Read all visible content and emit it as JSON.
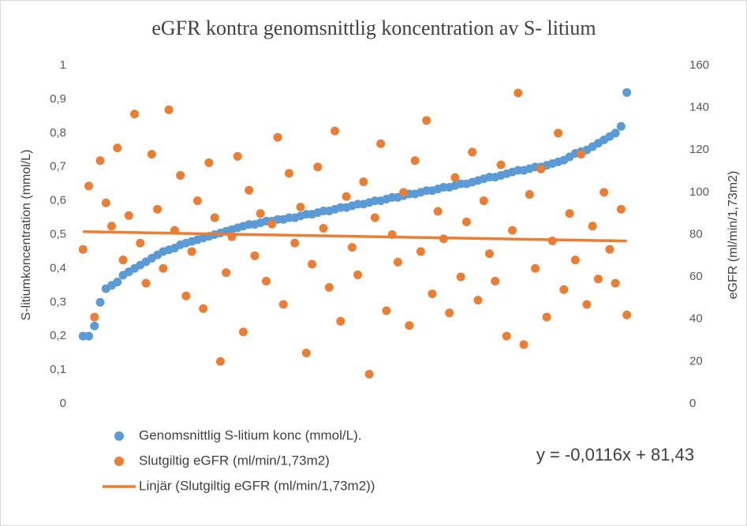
{
  "chart_data": {
    "type": "scatter",
    "title": "eGFR kontra genomsnittlig koncentration av S- litium",
    "y_label": "S-litiumkoncentration (mmol/L)",
    "y2_label": "eGFR (ml/min/1,73m2)",
    "xlim": [
      0,
      420
    ],
    "ylim": [
      0,
      1
    ],
    "yticks": [
      0,
      {
        "value": 0.1,
        "label": "0,1"
      },
      {
        "value": 0.2,
        "label": "0,2"
      },
      {
        "value": 0.3,
        "label": "0,3"
      },
      {
        "value": 0.4,
        "label": "0,4"
      },
      {
        "value": 0.5,
        "label": "0,5"
      },
      {
        "value": 0.6,
        "label": "0,6"
      },
      {
        "value": 0.7,
        "label": "0,7"
      },
      {
        "value": 0.8,
        "label": "0,8"
      },
      {
        "value": 0.9,
        "label": "0,9"
      },
      1
    ],
    "y2lim": [
      0,
      160
    ],
    "y2ticks": [
      0,
      20,
      40,
      60,
      80,
      100,
      120,
      140,
      160
    ],
    "x": [
      4,
      8,
      12,
      16,
      20,
      24,
      28,
      32,
      36,
      40,
      44,
      48,
      52,
      56,
      60,
      64,
      68,
      72,
      76,
      80,
      84,
      88,
      92,
      96,
      100,
      104,
      108,
      112,
      116,
      120,
      124,
      128,
      132,
      136,
      140,
      144,
      148,
      152,
      156,
      160,
      164,
      168,
      172,
      176,
      180,
      184,
      188,
      192,
      196,
      200,
      204,
      208,
      212,
      216,
      220,
      224,
      228,
      232,
      236,
      240,
      244,
      248,
      252,
      256,
      260,
      264,
      268,
      272,
      276,
      280,
      284,
      288,
      292,
      296,
      300,
      304,
      308,
      312,
      316,
      320,
      324,
      328,
      332,
      336,
      340,
      344,
      348,
      352,
      356,
      360,
      364,
      368,
      372,
      376,
      380,
      384
    ],
    "series": [
      {
        "name": "Genomsnittlig S-litium konc (mmol/L).",
        "color": "#5b9bd5",
        "values": [
          0.2,
          0.2,
          0.23,
          0.3,
          0.34,
          0.35,
          0.36,
          0.38,
          0.39,
          0.4,
          0.41,
          0.42,
          0.43,
          0.44,
          0.45,
          0.455,
          0.46,
          0.47,
          0.475,
          0.48,
          0.485,
          0.49,
          0.495,
          0.5,
          0.505,
          0.51,
          0.515,
          0.52,
          0.525,
          0.53,
          0.53,
          0.535,
          0.54,
          0.54,
          0.545,
          0.545,
          0.55,
          0.55,
          0.555,
          0.56,
          0.56,
          0.565,
          0.57,
          0.57,
          0.575,
          0.58,
          0.58,
          0.585,
          0.59,
          0.59,
          0.595,
          0.6,
          0.6,
          0.605,
          0.61,
          0.61,
          0.615,
          0.62,
          0.62,
          0.625,
          0.63,
          0.63,
          0.635,
          0.64,
          0.64,
          0.645,
          0.65,
          0.65,
          0.655,
          0.66,
          0.665,
          0.67,
          0.67,
          0.675,
          0.68,
          0.685,
          0.69,
          0.69,
          0.695,
          0.7,
          0.7,
          0.705,
          0.71,
          0.715,
          0.72,
          0.73,
          0.74,
          0.745,
          0.75,
          0.76,
          0.77,
          0.78,
          0.79,
          0.8,
          0.82,
          0.92
        ]
      },
      {
        "name": "Slutgiltig eGFR (ml/min/1,73m2)",
        "color": "#ed7d31",
        "axis": "y2",
        "values": [
          73,
          103,
          41,
          115,
          95,
          84,
          121,
          68,
          89,
          137,
          76,
          57,
          118,
          92,
          64,
          139,
          82,
          108,
          51,
          72,
          96,
          45,
          114,
          88,
          20,
          62,
          79,
          117,
          34,
          101,
          70,
          90,
          58,
          85,
          126,
          47,
          109,
          76,
          93,
          24,
          66,
          112,
          83,
          55,
          129,
          39,
          98,
          74,
          61,
          105,
          14,
          88,
          123,
          44,
          80,
          67,
          100,
          37,
          115,
          72,
          134,
          52,
          91,
          78,
          43,
          107,
          60,
          86,
          119,
          49,
          96,
          71,
          58,
          113,
          32,
          82,
          147,
          28,
          99,
          64,
          111,
          41,
          77,
          128,
          54,
          90,
          68,
          118,
          47,
          84,
          59,
          100,
          73,
          57,
          92,
          42
        ]
      }
    ],
    "trendline": {
      "name": "Linjär (Slutgiltig eGFR (ml/min/1,73m2))",
      "color": "#ed7d31",
      "axis": "y2",
      "equation": "y = -0,0116x + 81,43",
      "slope": -0.0116,
      "intercept": 81.43
    }
  }
}
